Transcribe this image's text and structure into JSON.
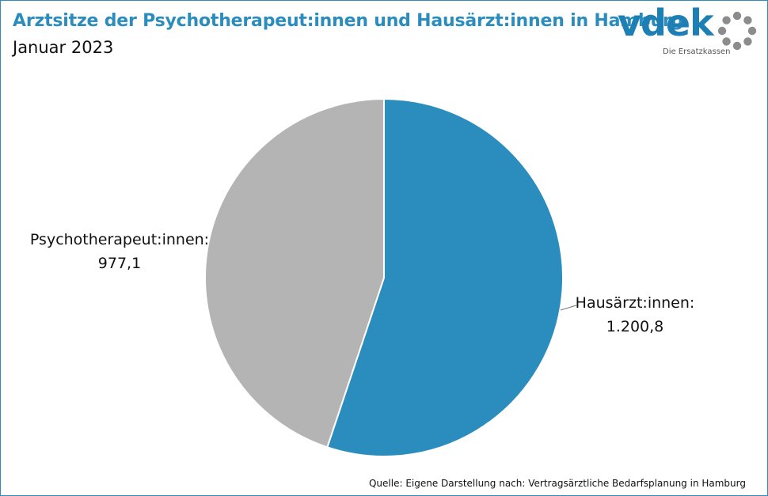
{
  "header": {
    "title": "Arztsitze der Psychotherapeut:innen und Hausärzt:innen in Hamburg",
    "subtitle": "Januar 2023"
  },
  "logo": {
    "wordmark": "vdek",
    "tagline": "Die Ersatzkassen",
    "icon": "ring-of-dots-icon"
  },
  "chart_data": {
    "type": "pie",
    "title": "Arztsitze der Psychotherapeut:innen und Hausärzt:innen in Hamburg",
    "subtitle": "Januar 2023",
    "slices": [
      {
        "label": "Hausärzt:innen:",
        "value": 1200.8,
        "display": "1.200,8",
        "color": "#2b8cbe"
      },
      {
        "label": "Psychotherapeut:innen:",
        "value": 977.1,
        "display": "977,1",
        "color": "#b4b4b4"
      }
    ],
    "start_angle": "12 o'clock, clockwise",
    "legend": "none"
  },
  "footer": {
    "source": "Quelle: Eigene Darstellung nach: Vertragsärztliche Bedarfsplanung in Hamburg"
  },
  "colors": {
    "accent": "#2b8cbe",
    "secondary": "#b4b4b4",
    "logo_dots": "#8c8c8c"
  }
}
